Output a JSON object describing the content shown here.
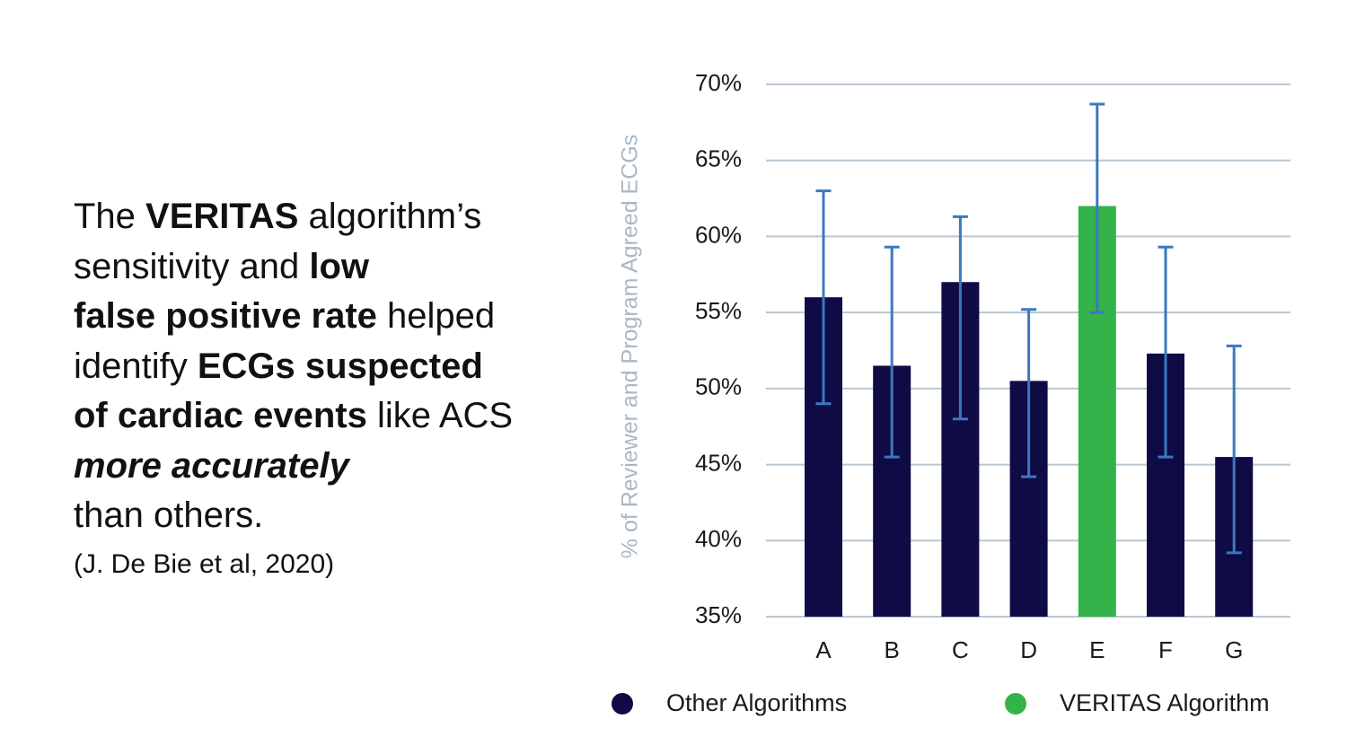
{
  "text_block": {
    "l1_a": "The ",
    "l1_b": "VERITAS",
    "l1_c": " algorithm’s",
    "l2_a": "sensitivity and ",
    "l2_b": "low",
    "l3_a": "false positive rate",
    "l3_b": " helped",
    "l4_a": "identify ",
    "l4_b": "ECGs suspected",
    "l5_a": "of cardiac events",
    "l5_b": " like ACS",
    "l6": "more accurately",
    "l7": "than others.",
    "citation": "(J. De Bie et al, 2020)"
  },
  "colors": {
    "other": "#0f0b45",
    "veritas": "#34b34a",
    "error_bar": "#3b78c2",
    "grid": "#b8c6d2",
    "axis_label": "#a9b8c4"
  },
  "chart_data": {
    "type": "bar",
    "title": "",
    "xlabel": "",
    "ylabel": "% of Reviewer and Program Agreed ECGs",
    "categories": [
      "A",
      "B",
      "C",
      "D",
      "E",
      "F",
      "G"
    ],
    "values": [
      56.0,
      51.5,
      57.0,
      50.5,
      62.0,
      52.3,
      45.5
    ],
    "error_low": [
      49.0,
      45.5,
      48.0,
      44.2,
      55.0,
      45.5,
      39.2
    ],
    "error_high": [
      63.0,
      59.3,
      61.3,
      55.2,
      68.7,
      59.3,
      52.8
    ],
    "groups": [
      "other",
      "other",
      "other",
      "other",
      "veritas",
      "other",
      "other"
    ],
    "ylim": [
      35,
      70
    ],
    "yticks": [
      35,
      40,
      45,
      50,
      55,
      60,
      65,
      70
    ],
    "ytick_labels": [
      "35%",
      "40%",
      "45%",
      "50%",
      "55%",
      "60%",
      "65%",
      "70%"
    ],
    "grid": true,
    "legend": [
      {
        "key": "other",
        "label": "Other Algorithms"
      },
      {
        "key": "veritas",
        "label": "VERITAS Algorithm"
      }
    ],
    "legend_position": "bottom"
  }
}
